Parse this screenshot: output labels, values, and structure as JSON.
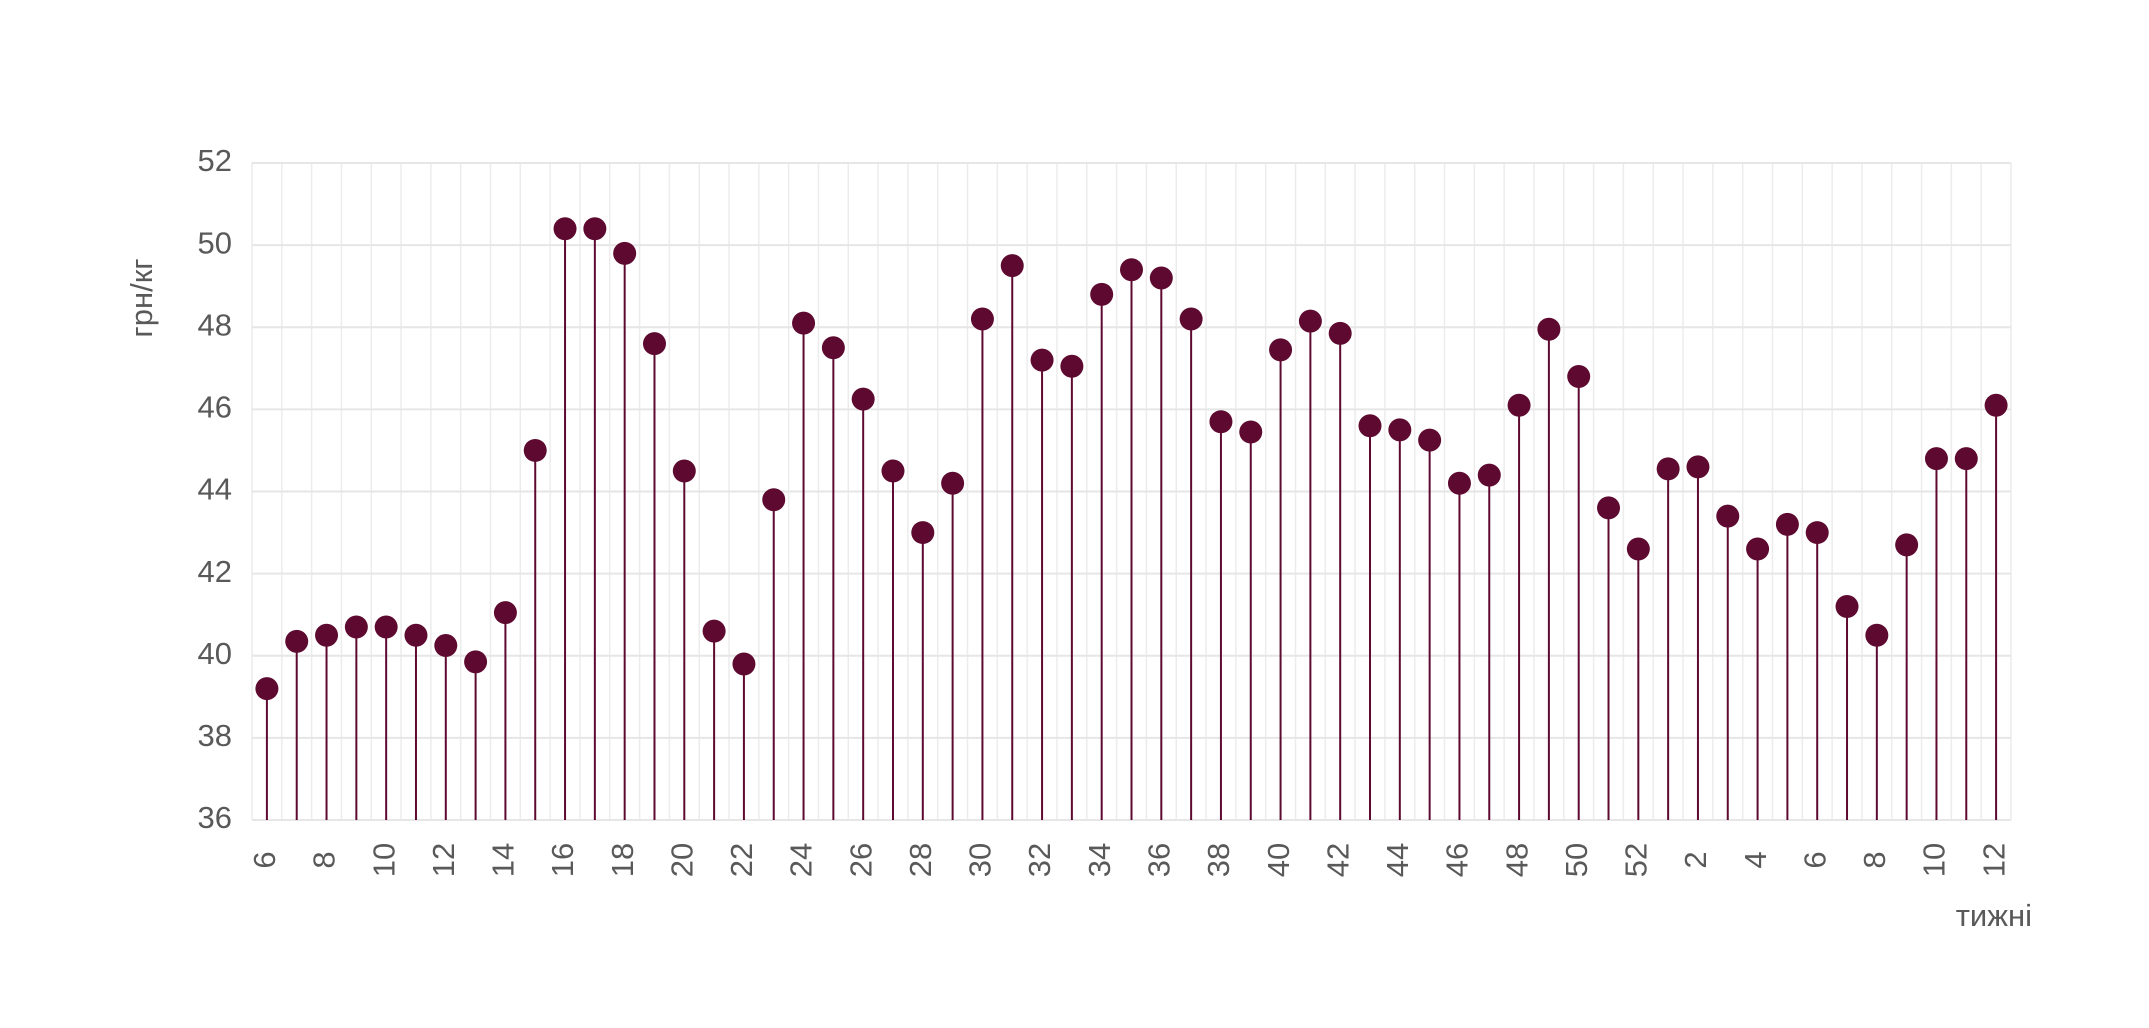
{
  "chart_data": {
    "type": "lollipop",
    "y_label": "грн/кг",
    "x_label": "тижні",
    "categories": [
      "6",
      null,
      "8",
      null,
      "10",
      null,
      "12",
      null,
      "14",
      null,
      "16",
      null,
      "18",
      null,
      "20",
      null,
      "22",
      null,
      "24",
      null,
      "26",
      null,
      "28",
      null,
      "30",
      null,
      "32",
      null,
      "34",
      null,
      "36",
      null,
      "38",
      null,
      "40",
      null,
      "42",
      null,
      "44",
      null,
      "46",
      null,
      "48",
      null,
      "50",
      null,
      "52",
      null,
      "2",
      null,
      "4",
      null,
      "6",
      null,
      "8",
      null,
      "10",
      null,
      "12"
    ],
    "values": [
      39.2,
      40.35,
      40.5,
      40.7,
      40.7,
      40.5,
      40.25,
      39.85,
      41.05,
      45.0,
      50.4,
      50.4,
      49.8,
      47.6,
      44.5,
      40.6,
      39.8,
      43.8,
      48.1,
      47.5,
      46.25,
      44.5,
      43.0,
      44.2,
      48.2,
      49.5,
      47.2,
      47.05,
      48.8,
      49.4,
      49.2,
      48.2,
      45.7,
      45.45,
      47.45,
      48.15,
      47.85,
      45.6,
      45.5,
      45.25,
      44.2,
      44.4,
      46.1,
      47.95,
      46.8,
      43.6,
      42.6,
      44.55,
      44.6,
      43.4,
      42.6,
      43.2,
      43.0,
      41.2,
      40.5,
      42.7,
      44.8,
      44.8,
      46.1
    ],
    "color": "#5e0a30",
    "ylim": [
      36,
      52
    ],
    "yticks": [
      36,
      38,
      40,
      42,
      44,
      46,
      48,
      50,
      52
    ],
    "grid": true
  }
}
